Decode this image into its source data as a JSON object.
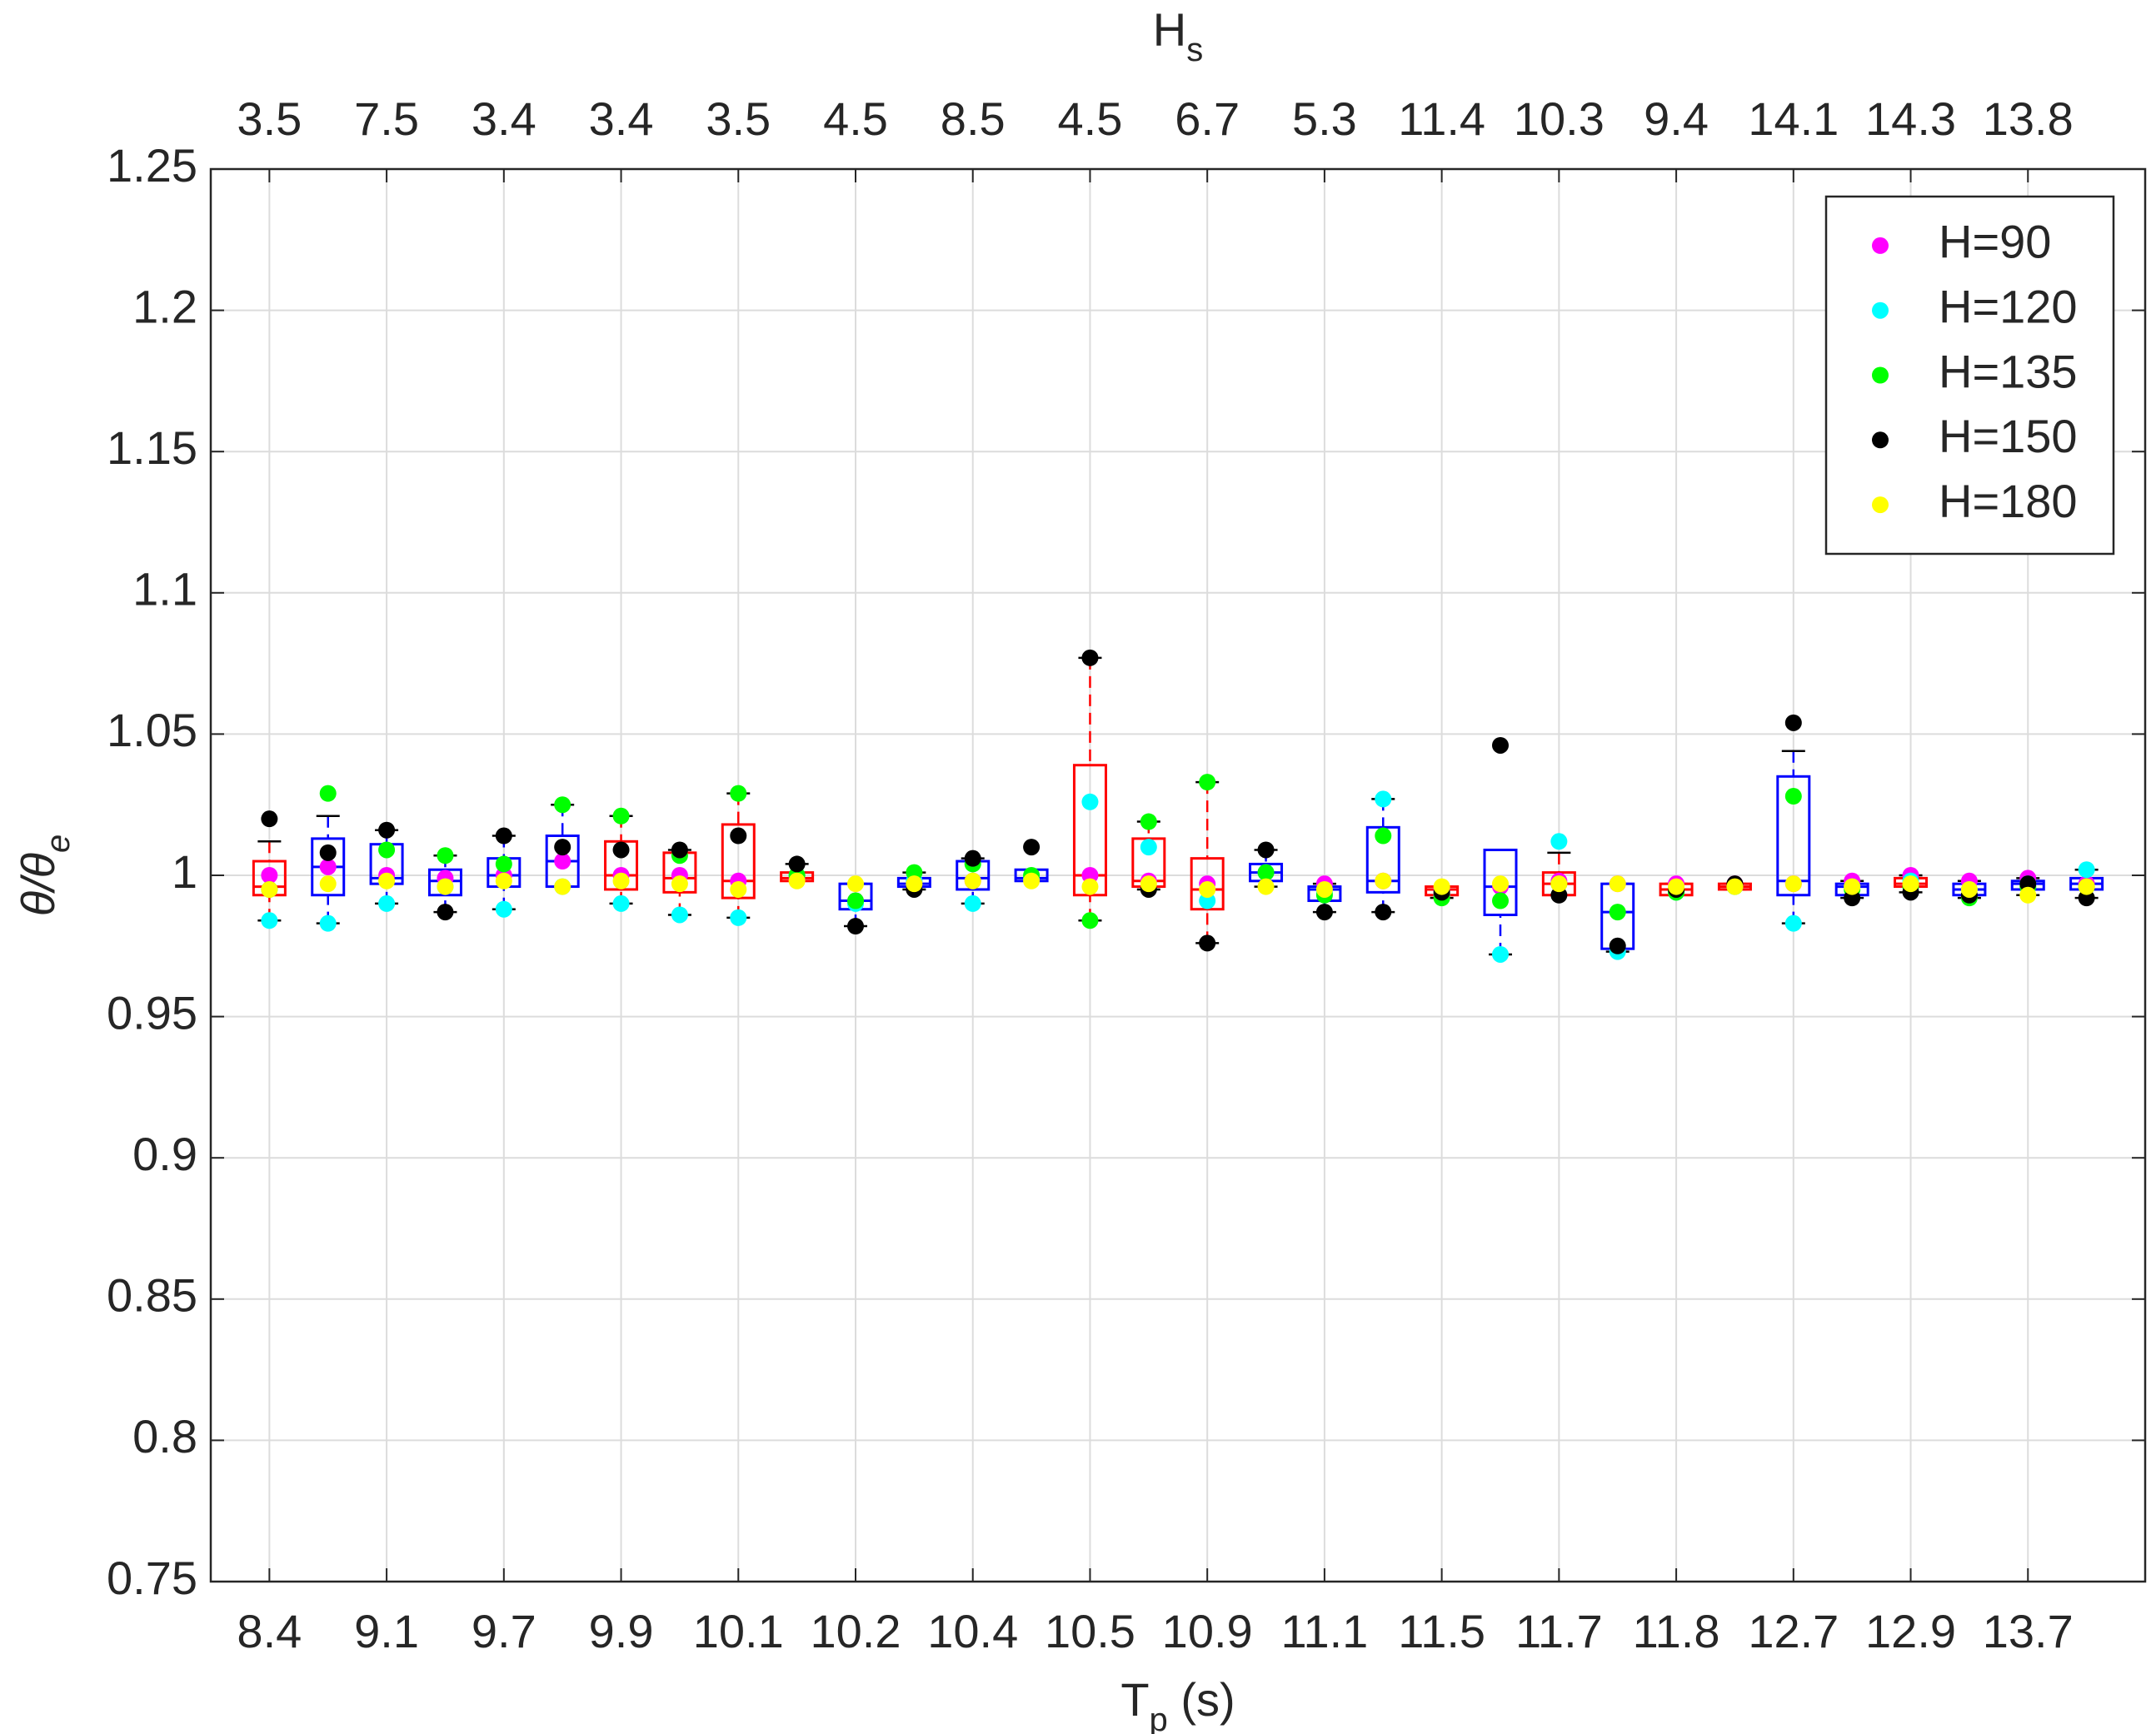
{
  "chart_data": {
    "type": "box",
    "xlabel": [
      "T",
      "p",
      " (s)"
    ],
    "x2label": [
      "H",
      "s"
    ],
    "ylabel": [
      "θ/θ",
      "e"
    ],
    "categories": [
      "8.4",
      null,
      "9.1",
      null,
      "9.7",
      null,
      "9.9",
      null,
      "10.1",
      null,
      "10.2",
      null,
      "10.4",
      null,
      "10.5",
      null,
      "10.9",
      null,
      "11.1",
      null,
      "11.5",
      null,
      "11.7",
      null,
      "11.8",
      null,
      "12.7",
      null,
      "12.9",
      null,
      "13.7",
      null
    ],
    "top_categories": [
      "3.5",
      null,
      "7.5",
      null,
      "3.4",
      null,
      "3.4",
      null,
      "3.5",
      null,
      "4.5",
      null,
      "8.5",
      null,
      "4.5",
      null,
      "6.7",
      null,
      "5.3",
      null,
      "11.4",
      null,
      "10.3",
      null,
      "9.4",
      null,
      "14.1",
      null,
      "14.3",
      null,
      "13.8",
      null
    ],
    "ylim": [
      0.75,
      1.25
    ],
    "yticks": [
      0.75,
      0.8,
      0.85,
      0.9,
      0.95,
      1,
      1.05,
      1.1,
      1.15,
      1.2,
      1.25
    ],
    "grid": true,
    "legend": "northeast",
    "boxes": {
      "colors": [
        "#ff0000",
        "#0000ff",
        "#0000ff",
        "#0000ff",
        "#0000ff",
        "#0000ff",
        "#ff0000",
        "#ff0000",
        "#ff0000",
        "#ff0000",
        "#0000ff",
        "#0000ff",
        "#0000ff",
        "#0000ff",
        "#ff0000",
        "#ff0000",
        "#ff0000",
        "#0000ff",
        "#0000ff",
        "#0000ff",
        "#ff0000",
        "#0000ff",
        "#ff0000",
        "#0000ff",
        "#ff0000",
        "#ff0000",
        "#0000ff",
        "#0000ff",
        "#ff0000",
        "#0000ff",
        "#0000ff",
        "#0000ff"
      ],
      "low": [
        0.984,
        0.983,
        0.99,
        0.987,
        0.988,
        0.996,
        0.99,
        0.986,
        0.985,
        0.998,
        0.982,
        0.995,
        0.99,
        0.998,
        0.984,
        0.995,
        0.976,
        0.996,
        0.987,
        0.987,
        0.992,
        0.972,
        0.993,
        0.973,
        0.993,
        0.995,
        0.983,
        0.992,
        0.994,
        0.992,
        0.993,
        0.992
      ],
      "q1": [
        0.993,
        0.993,
        0.997,
        0.993,
        0.996,
        0.996,
        0.995,
        0.994,
        0.992,
        0.998,
        0.988,
        0.996,
        0.995,
        0.998,
        0.993,
        0.996,
        0.988,
        0.998,
        0.991,
        0.994,
        0.993,
        0.986,
        0.993,
        0.974,
        0.993,
        0.995,
        0.993,
        0.993,
        0.996,
        0.993,
        0.995,
        0.995
      ],
      "median": [
        0.996,
        1.003,
        0.999,
        0.998,
        1.0,
        1.005,
        1.0,
        0.999,
        0.998,
        0.999,
        0.991,
        0.997,
        0.999,
        0.999,
        1.0,
        0.998,
        0.995,
        1.001,
        0.995,
        0.998,
        0.995,
        0.996,
        0.997,
        0.987,
        0.995,
        0.996,
        0.998,
        0.996,
        0.997,
        0.995,
        0.997,
        0.997
      ],
      "q3": [
        1.005,
        1.013,
        1.011,
        1.002,
        1.006,
        1.014,
        1.012,
        1.008,
        1.018,
        1.001,
        0.997,
        0.999,
        1.005,
        1.002,
        1.039,
        1.013,
        1.006,
        1.004,
        0.996,
        1.017,
        0.996,
        1.009,
        1.001,
        0.997,
        0.997,
        0.997,
        1.035,
        0.997,
        0.999,
        0.997,
        0.998,
        0.999
      ],
      "high": [
        1.012,
        1.021,
        1.016,
        1.007,
        1.014,
        1.025,
        1.021,
        1.009,
        1.029,
        1.004,
        0.997,
        1.001,
        1.006,
        1.002,
        1.077,
        1.019,
        1.033,
        1.009,
        0.997,
        1.027,
        0.996,
        1.009,
        1.008,
        0.997,
        0.997,
        0.997,
        1.044,
        0.998,
        1.0,
        0.998,
        0.999,
        1.002
      ]
    },
    "series": [
      {
        "name": "H=90",
        "color": "#ff00ff",
        "values": [
          1.0,
          1.003,
          1.0,
          0.999,
          1.0,
          1.005,
          1.0,
          1.0,
          0.998,
          0.999,
          0.991,
          0.998,
          0.998,
          0.999,
          1.0,
          0.998,
          0.997,
          1.001,
          0.997,
          0.998,
          0.995,
          0.996,
          0.998,
          0.997,
          0.997,
          0.997,
          0.997,
          0.998,
          1.0,
          0.998,
          0.999,
          0.997
        ]
      },
      {
        "name": "H=120",
        "color": "#00ffff",
        "values": [
          0.984,
          0.983,
          0.99,
          0.996,
          0.988,
          0.996,
          0.99,
          0.986,
          0.985,
          1.0,
          0.99,
          0.998,
          0.99,
          0.999,
          1.026,
          1.01,
          0.991,
          1.001,
          0.994,
          1.027,
          0.993,
          0.972,
          1.012,
          0.973,
          0.994,
          0.996,
          0.983,
          0.996,
          0.998,
          0.995,
          0.997,
          1.002
        ]
      },
      {
        "name": "H=135",
        "color": "#00ff00",
        "values": [
          0.995,
          1.029,
          1.009,
          1.007,
          1.004,
          1.025,
          1.021,
          1.007,
          1.029,
          1.0,
          0.991,
          1.001,
          1.004,
          1.0,
          0.984,
          1.019,
          1.033,
          1.001,
          0.993,
          1.014,
          0.992,
          0.991,
          0.997,
          0.987,
          0.994,
          0.996,
          1.028,
          0.995,
          0.996,
          0.992,
          0.996,
          0.996
        ]
      },
      {
        "name": "H=150",
        "color": "#000000",
        "values": [
          1.02,
          1.008,
          1.016,
          0.987,
          1.014,
          1.01,
          1.009,
          1.009,
          1.014,
          1.004,
          0.982,
          0.995,
          1.006,
          1.01,
          1.077,
          0.995,
          0.976,
          1.009,
          0.987,
          0.987,
          0.994,
          1.046,
          0.993,
          0.975,
          0.995,
          0.997,
          1.054,
          0.992,
          0.994,
          0.993,
          0.997,
          0.992
        ]
      },
      {
        "name": "H=180",
        "color": "#ffff00",
        "values": [
          0.995,
          0.997,
          0.998,
          0.996,
          0.998,
          0.996,
          0.998,
          0.997,
          0.995,
          0.998,
          0.997,
          0.997,
          0.998,
          0.998,
          0.996,
          0.997,
          0.995,
          0.996,
          0.995,
          0.998,
          0.996,
          0.997,
          0.997,
          0.997,
          0.996,
          0.996,
          0.997,
          0.996,
          0.997,
          0.995,
          0.993,
          0.996
        ]
      }
    ]
  }
}
